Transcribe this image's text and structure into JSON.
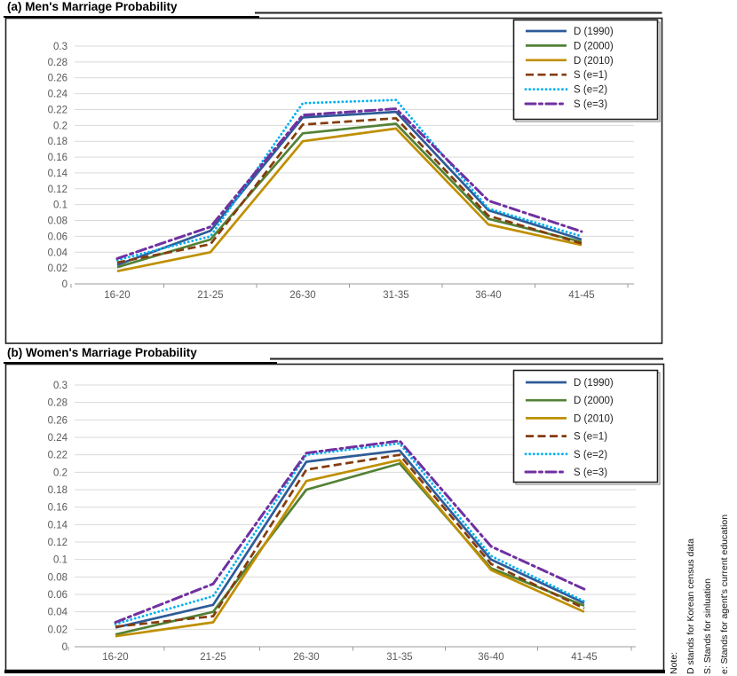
{
  "page": {
    "background": "#FFFFFF"
  },
  "note": {
    "label": "Note:",
    "lines": [
      "D stands for Korean census data",
      "S: Stands for sinluation",
      "e: Stands for agent's current education"
    ]
  },
  "style_colors": {
    "gridline": "#D9D9D9",
    "axis": "#9B9B9B",
    "tick_text": "#595959",
    "border": "#1F1F1F"
  },
  "chart_data": [
    {
      "type": "line",
      "title": "(a) Men's Marriage Probability",
      "categories": [
        "16-20",
        "21-25",
        "26-30",
        "31-35",
        "36-40",
        "41-45"
      ],
      "xlabel": "",
      "ylabel": "",
      "ylim": [
        0,
        0.3
      ],
      "ytick_step": 0.02,
      "grid": true,
      "legend_position": "top-right",
      "series": [
        {
          "name": "D (1990)",
          "color": "#2E5B97",
          "style": "solid",
          "values": [
            0.024,
            0.067,
            0.21,
            0.217,
            0.093,
            0.056
          ]
        },
        {
          "name": "D (2000)",
          "color": "#538135",
          "style": "solid",
          "values": [
            0.021,
            0.056,
            0.19,
            0.202,
            0.082,
            0.053
          ]
        },
        {
          "name": "D (2010)",
          "color": "#BF8F00",
          "style": "solid",
          "values": [
            0.016,
            0.04,
            0.18,
            0.196,
            0.075,
            0.049
          ]
        },
        {
          "name": "S (e=1)",
          "color": "#843C0C",
          "style": "dashed",
          "values": [
            0.027,
            0.05,
            0.201,
            0.209,
            0.086,
            0.051
          ]
        },
        {
          "name": "S (e=2)",
          "color": "#00B0F0",
          "style": "dotted",
          "values": [
            0.03,
            0.06,
            0.228,
            0.232,
            0.095,
            0.06
          ]
        },
        {
          "name": "S (e=3)",
          "color": "#7030A0",
          "style": "dashdot",
          "values": [
            0.032,
            0.072,
            0.213,
            0.221,
            0.105,
            0.066
          ]
        }
      ]
    },
    {
      "type": "line",
      "title": "(b) Women's Marriage Probability",
      "categories": [
        "16-20",
        "21-25",
        "26-30",
        "31-35",
        "36-40",
        "41-45"
      ],
      "xlabel": "",
      "ylabel": "",
      "ylim": [
        0,
        0.3
      ],
      "ytick_step": 0.02,
      "grid": true,
      "legend_position": "top-right",
      "series": [
        {
          "name": "D (1990)",
          "color": "#2E5B97",
          "style": "solid",
          "values": [
            0.022,
            0.048,
            0.212,
            0.225,
            0.1,
            0.05
          ]
        },
        {
          "name": "D (2000)",
          "color": "#538135",
          "style": "solid",
          "values": [
            0.014,
            0.04,
            0.18,
            0.21,
            0.09,
            0.047
          ]
        },
        {
          "name": "D (2010)",
          "color": "#BF8F00",
          "style": "solid",
          "values": [
            0.012,
            0.028,
            0.19,
            0.214,
            0.088,
            0.04
          ]
        },
        {
          "name": "S (e=1)",
          "color": "#843C0C",
          "style": "dashed",
          "values": [
            0.023,
            0.035,
            0.203,
            0.22,
            0.095,
            0.044
          ]
        },
        {
          "name": "S (e=2)",
          "color": "#00B0F0",
          "style": "dotted",
          "values": [
            0.026,
            0.058,
            0.22,
            0.233,
            0.104,
            0.052
          ]
        },
        {
          "name": "S (e=3)",
          "color": "#7030A0",
          "style": "dashdot",
          "values": [
            0.028,
            0.072,
            0.222,
            0.236,
            0.115,
            0.066
          ]
        }
      ]
    }
  ]
}
